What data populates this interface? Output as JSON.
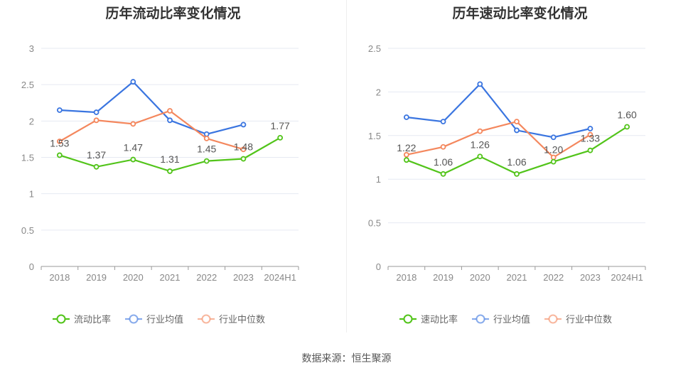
{
  "source_text": "数据来源：恒生聚源",
  "chart_data": [
    {
      "type": "line",
      "title": "历年流动比率变化情况",
      "categories": [
        "2018",
        "2019",
        "2020",
        "2021",
        "2022",
        "2023",
        "2024H1"
      ],
      "ylim": [
        0,
        3
      ],
      "yticks": [
        "0",
        "0.5",
        "1",
        "1.5",
        "2",
        "2.5",
        "3"
      ],
      "grid": true,
      "legend_position": "bottom",
      "series": [
        {
          "name": "流动比率",
          "color": "#52c41a",
          "values": [
            1.53,
            1.37,
            1.47,
            1.31,
            1.45,
            1.48,
            1.77
          ],
          "labels": [
            "1.53",
            "1.37",
            "1.47",
            "1.31",
            "1.45",
            "1.48",
            "1.77"
          ]
        },
        {
          "name": "行业均值",
          "color": "#3a75e0",
          "values": [
            2.15,
            2.12,
            2.54,
            2.01,
            1.82,
            1.95,
            null
          ]
        },
        {
          "name": "行业中位数",
          "color": "#f4875d",
          "values": [
            1.72,
            2.01,
            1.96,
            2.14,
            1.76,
            1.61,
            null
          ]
        }
      ]
    },
    {
      "type": "line",
      "title": "历年速动比率变化情况",
      "categories": [
        "2018",
        "2019",
        "2020",
        "2021",
        "2022",
        "2023",
        "2024H1"
      ],
      "ylim": [
        0,
        2.5
      ],
      "yticks": [
        "0",
        "0.5",
        "1",
        "1.5",
        "2",
        "2.5"
      ],
      "grid": true,
      "legend_position": "bottom",
      "series": [
        {
          "name": "速动比率",
          "color": "#52c41a",
          "values": [
            1.22,
            1.06,
            1.26,
            1.06,
            1.2,
            1.33,
            1.6
          ],
          "labels": [
            "1.22",
            "1.06",
            "1.26",
            "1.06",
            "1.20",
            "1.33",
            "1.60"
          ]
        },
        {
          "name": "行业均值",
          "color": "#3a75e0",
          "values": [
            1.71,
            1.66,
            2.09,
            1.56,
            1.48,
            1.58,
            null
          ]
        },
        {
          "name": "行业中位数",
          "color": "#f4875d",
          "values": [
            1.28,
            1.37,
            1.55,
            1.66,
            1.25,
            1.51,
            null
          ]
        }
      ]
    }
  ]
}
